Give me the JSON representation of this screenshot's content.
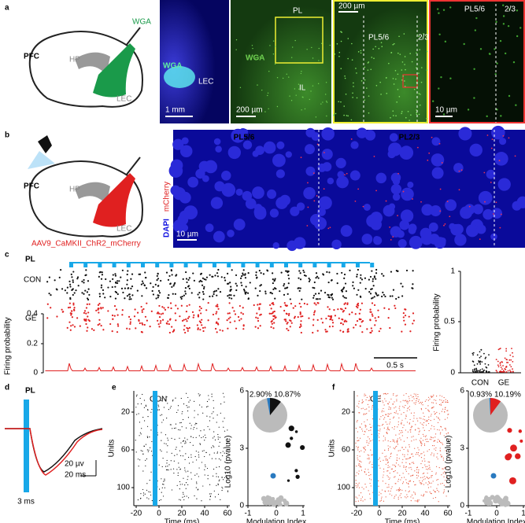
{
  "panel_a": {
    "label": "a",
    "schematic": {
      "region": "PFC",
      "hp": "HP",
      "tracer": "WGA",
      "lec": "LEC"
    },
    "image_1": {
      "tracer": "WGA",
      "region": "LEC",
      "scale": "1 mm"
    },
    "image_2": {
      "top": "PL",
      "tracer": "WGA",
      "bottom": "IL",
      "scale": "200 µm"
    },
    "image_3": {
      "scale": "200 µm",
      "deep": "PL5/6",
      "superficial": "2/3"
    },
    "image_4": {
      "deep": "PL5/6",
      "superficial": "2/3",
      "scale": "10 µm"
    }
  },
  "panel_b": {
    "label": "b",
    "schematic": {
      "region": "PFC",
      "hp": "HP",
      "lec": "LEC",
      "virus": "AAV9_CaMKII_ChR2_mCherry"
    },
    "image": {
      "left": "PL5/6",
      "right": "PL2/3",
      "stain_1": "DAPI",
      "stain_2": "mCherry",
      "scale": "10 µm"
    }
  },
  "panel_c": {
    "label": "c",
    "region": "PL",
    "rows": [
      "CON",
      "GE"
    ],
    "y_label": "Firing probability",
    "y_ticks": [
      "0.4",
      "0.2",
      "0"
    ],
    "scale": "0.5 s",
    "bar_plot": {
      "y_label": "Firing probability",
      "y_ticks": [
        "1",
        "0.5",
        "0"
      ],
      "groups": [
        "CON",
        "GE"
      ]
    }
  },
  "panel_d": {
    "label": "d",
    "region": "PL",
    "scale_v": "20 µv",
    "scale_t": "20 ms",
    "pulse": "3 ms"
  },
  "panel_e": {
    "label": "e",
    "group": "CON",
    "y_label": "Units",
    "y_ticks": [
      "20",
      "60",
      "100"
    ],
    "x_ticks": [
      "-20",
      "0",
      "20",
      "40",
      "60"
    ],
    "x_label": "Time (ms)",
    "pie": [
      "2.90%",
      "10.87%"
    ],
    "s_y_label": "- Log10 (pvalue)",
    "s_y_ticks": [
      "6",
      "3",
      "0"
    ],
    "s_x_ticks": [
      "-1",
      "0",
      "1"
    ],
    "s_x_label": "Modulation Index"
  },
  "panel_f": {
    "label": "f",
    "group": "GE",
    "y_label": "Units",
    "y_ticks": [
      "20",
      "60",
      "100"
    ],
    "x_ticks": [
      "-20",
      "0",
      "20",
      "40",
      "60"
    ],
    "x_label": "Time (ms)",
    "pie": [
      "0.93%",
      "10.19%"
    ],
    "s_y_label": "- Log10 (pvalue)",
    "s_y_ticks": [
      "6",
      "3",
      "0"
    ],
    "s_x_ticks": [
      "-1",
      "0",
      "1"
    ],
    "s_x_label": "Modulation Index"
  }
}
